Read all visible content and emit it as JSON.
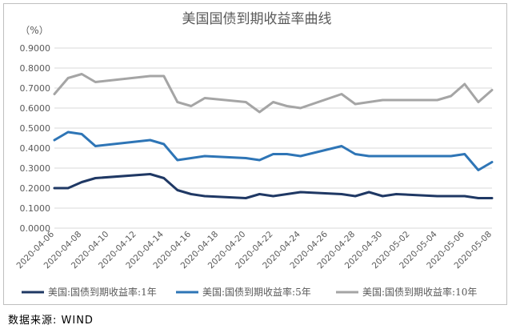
{
  "chart_data": {
    "type": "line",
    "title": "美国国债到期收益率曲线",
    "unit_label": "（%）",
    "ylim": [
      0,
      0.9
    ],
    "yticks": [
      "0.0000",
      "0.1000",
      "0.2000",
      "0.3000",
      "0.4000",
      "0.5000",
      "0.6000",
      "0.7000",
      "0.8000",
      "0.9000"
    ],
    "x": [
      "2020-04-06",
      "2020-04-07",
      "2020-04-08",
      "2020-04-09",
      "2020-04-13",
      "2020-04-14",
      "2020-04-15",
      "2020-04-16",
      "2020-04-17",
      "2020-04-20",
      "2020-04-21",
      "2020-04-22",
      "2020-04-23",
      "2020-04-24",
      "2020-04-27",
      "2020-04-28",
      "2020-04-29",
      "2020-04-30",
      "2020-05-01",
      "2020-05-04",
      "2020-05-05",
      "2020-05-06",
      "2020-05-07",
      "2020-05-08"
    ],
    "xtick_labels": [
      "2020-04-06",
      "2020-04-08",
      "2020-04-10",
      "2020-04-12",
      "2020-04-14",
      "2020-04-16",
      "2020-04-18",
      "2020-04-20",
      "2020-04-22",
      "2020-04-24",
      "2020-04-26",
      "2020-04-28",
      "2020-04-30",
      "2020-05-02",
      "2020-05-04",
      "2020-05-06",
      "2020-05-08"
    ],
    "series": [
      {
        "name": "美国:国债到期收益率:1年",
        "color": "#1f3864",
        "values": [
          0.2,
          0.2,
          0.23,
          0.25,
          0.27,
          0.25,
          0.19,
          0.17,
          0.16,
          0.15,
          0.17,
          0.16,
          0.17,
          0.18,
          0.17,
          0.16,
          0.18,
          0.16,
          0.17,
          0.16,
          0.16,
          0.16,
          0.15,
          0.15
        ]
      },
      {
        "name": "美国:国债到期收益率:5年",
        "color": "#2e75b6",
        "values": [
          0.44,
          0.48,
          0.47,
          0.41,
          0.44,
          0.42,
          0.34,
          0.35,
          0.36,
          0.35,
          0.34,
          0.37,
          0.37,
          0.36,
          0.41,
          0.37,
          0.36,
          0.36,
          0.36,
          0.36,
          0.36,
          0.37,
          0.29,
          0.33
        ]
      },
      {
        "name": "美国:国债到期收益率:10年",
        "color": "#a5a5a5",
        "values": [
          0.67,
          0.75,
          0.77,
          0.73,
          0.76,
          0.76,
          0.63,
          0.61,
          0.65,
          0.63,
          0.58,
          0.63,
          0.61,
          0.6,
          0.67,
          0.62,
          0.63,
          0.64,
          0.64,
          0.64,
          0.66,
          0.72,
          0.63,
          0.69
        ]
      }
    ],
    "grid": true,
    "legend_position": "bottom"
  },
  "source": "数据来源: WIND"
}
